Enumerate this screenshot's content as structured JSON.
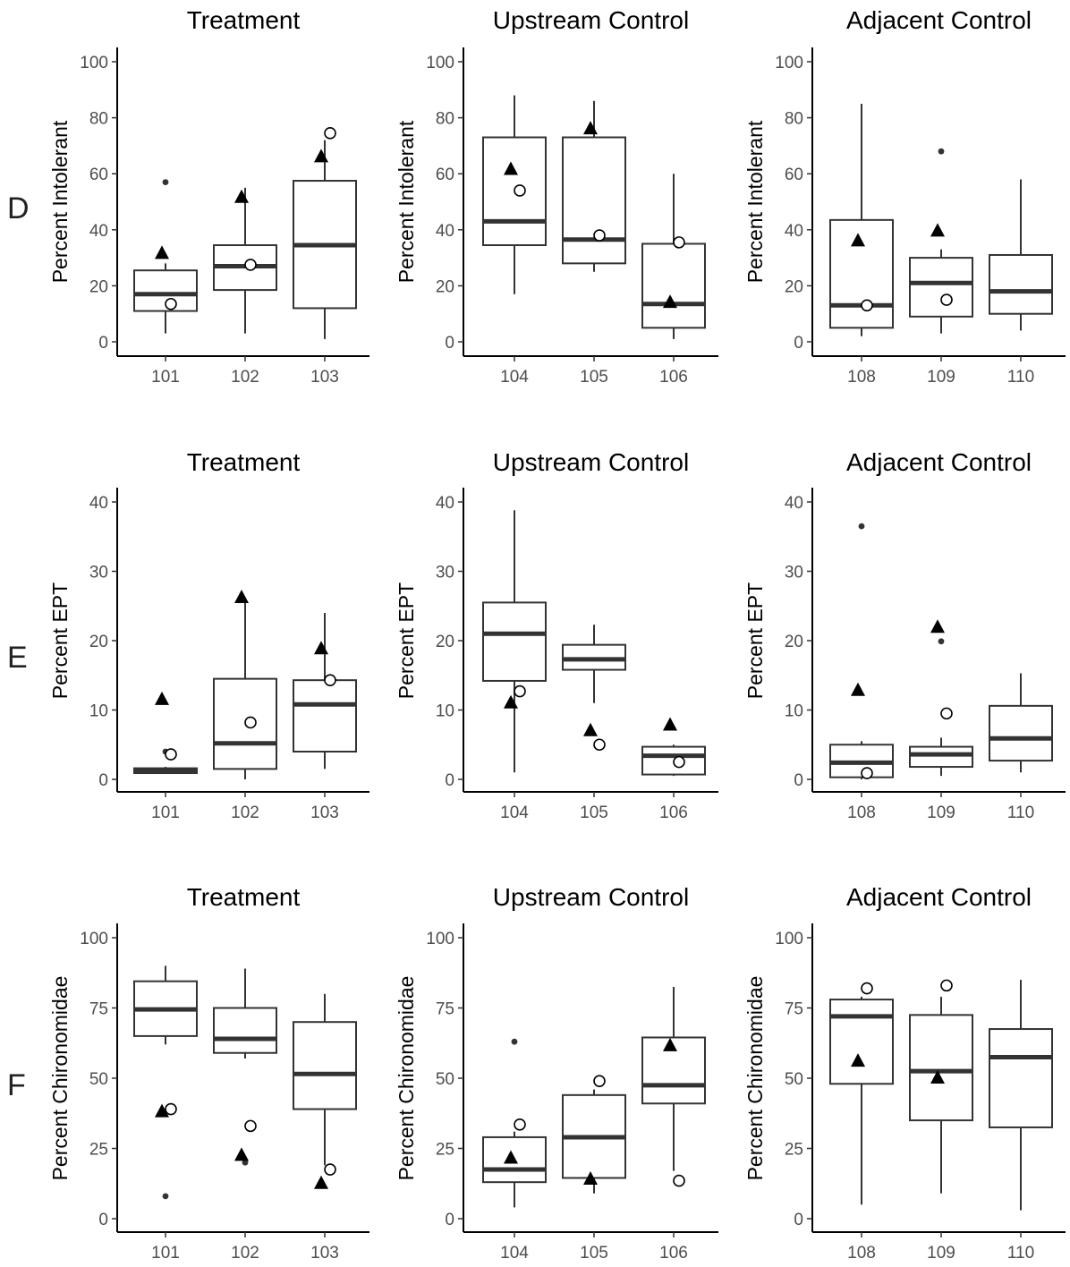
{
  "row_labels": [
    "D",
    "E",
    "F"
  ],
  "chart_data": [
    {
      "type": "boxplot",
      "row": "D",
      "title": "Treatment",
      "ylabel": "Percent Intolerant",
      "ylim": [
        0,
        100
      ],
      "yticks": [
        0,
        20,
        40,
        60,
        80,
        100
      ],
      "grid": false,
      "categories": [
        "101",
        "102",
        "103"
      ],
      "boxes": [
        {
          "category": "101",
          "whisker_low": 3,
          "q1": 11,
          "median": 17,
          "q3": 25.5,
          "whisker_high": 28,
          "outliers": [
            57
          ],
          "triangle": 31.5,
          "circle": 13.5
        },
        {
          "category": "102",
          "whisker_low": 3,
          "q1": 18.5,
          "median": 27,
          "q3": 34.5,
          "whisker_high": 55,
          "outliers": [],
          "triangle": 51.5,
          "circle": 27.5
        },
        {
          "category": "103",
          "whisker_low": 1,
          "q1": 12,
          "median": 34.5,
          "q3": 57.5,
          "whisker_high": 72,
          "outliers": [],
          "triangle": 66,
          "circle": 74.5
        }
      ]
    },
    {
      "type": "boxplot",
      "row": "D",
      "title": "Upstream Control",
      "ylabel": "Percent Intolerant",
      "ylim": [
        0,
        100
      ],
      "yticks": [
        0,
        20,
        40,
        60,
        80,
        100
      ],
      "grid": false,
      "categories": [
        "104",
        "105",
        "106"
      ],
      "boxes": [
        {
          "category": "104",
          "whisker_low": 17,
          "q1": 34.5,
          "median": 43,
          "q3": 73,
          "whisker_high": 88,
          "outliers": [],
          "triangle": 61.5,
          "circle": 54
        },
        {
          "category": "105",
          "whisker_low": 25,
          "q1": 28,
          "median": 36.5,
          "q3": 73,
          "whisker_high": 86,
          "outliers": [],
          "triangle": 76,
          "circle": 38
        },
        {
          "category": "106",
          "whisker_low": 1,
          "q1": 5,
          "median": 13.5,
          "q3": 35,
          "whisker_high": 60,
          "outliers": [],
          "triangle": 14,
          "circle": 35.5
        }
      ]
    },
    {
      "type": "boxplot",
      "row": "D",
      "title": "Adjacent Control",
      "ylabel": "Percent Intolerant",
      "ylim": [
        0,
        100
      ],
      "yticks": [
        0,
        20,
        40,
        60,
        80,
        100
      ],
      "grid": false,
      "categories": [
        "108",
        "109",
        "110"
      ],
      "boxes": [
        {
          "category": "108",
          "whisker_low": 2,
          "q1": 5,
          "median": 13,
          "q3": 43.5,
          "whisker_high": 85,
          "outliers": [],
          "triangle": 36,
          "circle": 13
        },
        {
          "category": "109",
          "whisker_low": 3,
          "q1": 9,
          "median": 21,
          "q3": 30,
          "whisker_high": 33,
          "outliers": [
            68
          ],
          "triangle": 39.5,
          "circle": 15
        },
        {
          "category": "110",
          "whisker_low": 4,
          "q1": 10,
          "median": 18,
          "q3": 31,
          "whisker_high": 58,
          "outliers": [],
          "triangle": null,
          "circle": null
        }
      ]
    },
    {
      "type": "boxplot",
      "row": "E",
      "title": "Treatment",
      "ylabel": "Percent EPT",
      "ylim": [
        0,
        40
      ],
      "yticks": [
        0,
        10,
        20,
        30,
        40
      ],
      "grid": false,
      "categories": [
        "101",
        "102",
        "103"
      ],
      "boxes": [
        {
          "category": "101",
          "whisker_low": 0.8,
          "q1": 0.9,
          "median": 1.2,
          "q3": 1.6,
          "whisker_high": 1.8,
          "outliers": [
            4
          ],
          "triangle": 11.5,
          "circle": 3.6
        },
        {
          "category": "102",
          "whisker_low": 0,
          "q1": 1.5,
          "median": 5.2,
          "q3": 14.5,
          "whisker_high": 26,
          "outliers": [],
          "triangle": 26.2,
          "circle": 8.2
        },
        {
          "category": "103",
          "whisker_low": 1.5,
          "q1": 4,
          "median": 10.8,
          "q3": 14.3,
          "whisker_high": 24,
          "outliers": [],
          "triangle": 18.8,
          "circle": 14.3
        }
      ]
    },
    {
      "type": "boxplot",
      "row": "E",
      "title": "Upstream Control",
      "ylabel": "Percent EPT",
      "ylim": [
        0,
        40
      ],
      "yticks": [
        0,
        10,
        20,
        30,
        40
      ],
      "grid": false,
      "categories": [
        "104",
        "105",
        "106"
      ],
      "boxes": [
        {
          "category": "104",
          "whisker_low": 1,
          "q1": 14.2,
          "median": 21,
          "q3": 25.5,
          "whisker_high": 38.8,
          "outliers": [],
          "triangle": 11,
          "circle": 12.7
        },
        {
          "category": "105",
          "whisker_low": 11,
          "q1": 15.8,
          "median": 17.3,
          "q3": 19.4,
          "whisker_high": 22.3,
          "outliers": [],
          "triangle": 7,
          "circle": 5
        },
        {
          "category": "106",
          "whisker_low": 0.5,
          "q1": 0.7,
          "median": 3.4,
          "q3": 4.7,
          "whisker_high": 5,
          "outliers": [],
          "triangle": 7.8,
          "circle": 2.5
        }
      ]
    },
    {
      "type": "boxplot",
      "row": "E",
      "title": "Adjacent Control",
      "ylabel": "Percent EPT",
      "ylim": [
        0,
        40
      ],
      "yticks": [
        0,
        10,
        20,
        30,
        40
      ],
      "grid": false,
      "categories": [
        "108",
        "109",
        "110"
      ],
      "boxes": [
        {
          "category": "108",
          "whisker_low": 0,
          "q1": 0.3,
          "median": 2.4,
          "q3": 5,
          "whisker_high": 5.5,
          "outliers": [
            36.5
          ],
          "triangle": 12.8,
          "circle": 0.9
        },
        {
          "category": "109",
          "whisker_low": 0.5,
          "q1": 1.8,
          "median": 3.6,
          "q3": 4.7,
          "whisker_high": 6,
          "outliers": [
            19.9
          ],
          "triangle": 21.9,
          "circle": 9.5
        },
        {
          "category": "110",
          "whisker_low": 1,
          "q1": 2.7,
          "median": 5.9,
          "q3": 10.6,
          "whisker_high": 15.3,
          "outliers": [],
          "triangle": null,
          "circle": null
        }
      ]
    },
    {
      "type": "boxplot",
      "row": "F",
      "title": "Treatment",
      "ylabel": "Percent Chironomidae",
      "ylim": [
        0,
        100
      ],
      "yticks": [
        0,
        25,
        50,
        75,
        100
      ],
      "grid": false,
      "categories": [
        "101",
        "102",
        "103"
      ],
      "boxes": [
        {
          "category": "101",
          "whisker_low": 62,
          "q1": 65,
          "median": 74.5,
          "q3": 84.5,
          "whisker_high": 90,
          "outliers": [
            8
          ],
          "triangle": 38,
          "circle": 39
        },
        {
          "category": "102",
          "whisker_low": 57,
          "q1": 59,
          "median": 64,
          "q3": 75,
          "whisker_high": 89,
          "outliers": [
            20
          ],
          "triangle": 22.5,
          "circle": 33
        },
        {
          "category": "103",
          "whisker_low": 19,
          "q1": 39,
          "median": 51.5,
          "q3": 70,
          "whisker_high": 80,
          "outliers": [],
          "triangle": 12.5,
          "circle": 17.5
        }
      ]
    },
    {
      "type": "boxplot",
      "row": "F",
      "title": "Upstream Control",
      "ylabel": "Percent Chironomidae",
      "ylim": [
        0,
        100
      ],
      "yticks": [
        0,
        25,
        50,
        75,
        100
      ],
      "grid": false,
      "categories": [
        "104",
        "105",
        "106"
      ],
      "boxes": [
        {
          "category": "104",
          "whisker_low": 4,
          "q1": 13,
          "median": 17.5,
          "q3": 29,
          "whisker_high": 31,
          "outliers": [
            63
          ],
          "triangle": 21.5,
          "circle": 33.5
        },
        {
          "category": "105",
          "whisker_low": 9,
          "q1": 14.5,
          "median": 29,
          "q3": 44,
          "whisker_high": 46,
          "outliers": [],
          "triangle": 14,
          "circle": 49
        },
        {
          "category": "106",
          "whisker_low": 17,
          "q1": 41,
          "median": 47.5,
          "q3": 64.5,
          "whisker_high": 82.5,
          "outliers": [],
          "triangle": 61.5,
          "circle": 13.5
        }
      ]
    },
    {
      "type": "boxplot",
      "row": "F",
      "title": "Adjacent Control",
      "ylabel": "Percent Chironomidae",
      "ylim": [
        0,
        100
      ],
      "yticks": [
        0,
        25,
        50,
        75,
        100
      ],
      "grid": false,
      "categories": [
        "108",
        "109",
        "110"
      ],
      "boxes": [
        {
          "category": "108",
          "whisker_low": 5,
          "q1": 48,
          "median": 72,
          "q3": 78,
          "whisker_high": 79,
          "outliers": [],
          "triangle": 56,
          "circle": 82
        },
        {
          "category": "109",
          "whisker_low": 9,
          "q1": 35,
          "median": 52.5,
          "q3": 72.5,
          "whisker_high": 79,
          "outliers": [],
          "triangle": 50,
          "circle": 83
        },
        {
          "category": "110",
          "whisker_low": 3,
          "q1": 32.5,
          "median": 57.5,
          "q3": 67.5,
          "whisker_high": 85,
          "outliers": [],
          "triangle": null,
          "circle": null
        }
      ]
    }
  ]
}
